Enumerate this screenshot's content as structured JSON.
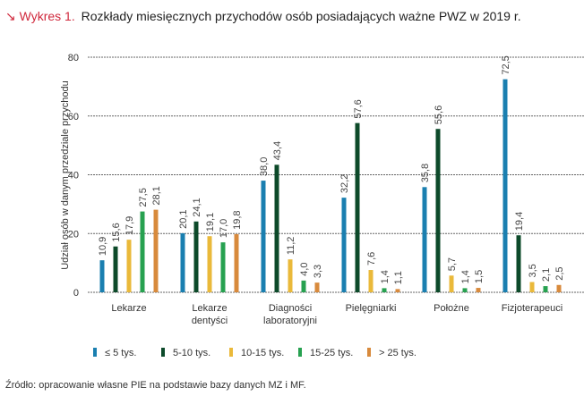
{
  "header": {
    "marker": "↘ Wykres 1.",
    "title": "Rozkłady miesięcznych przychodów osób posiadających ważne PWZ w 2019 r.",
    "marker_color": "#d0283c"
  },
  "source": "Źródło: opracowanie własne PIE na podstawie bazy danych MZ i MF.",
  "chart_data": {
    "type": "bar",
    "title": "Rozkłady miesięcznych przychodów osób posiadających ważne PWZ w 2019 r.",
    "ylabel": "Udział osób w danym przedziale przychodu",
    "ylim": [
      0,
      80
    ],
    "yticks": [
      0,
      20,
      40,
      60,
      80
    ],
    "grid": true,
    "legend": "bottom",
    "categories": [
      [
        "Lekarze"
      ],
      [
        "Lekarze",
        "dentyści"
      ],
      [
        "Diagności",
        "laboratoryjni"
      ],
      [
        "Pielęgniarki"
      ],
      [
        "Położne"
      ],
      [
        "Fizjoterapeuci"
      ]
    ],
    "series": [
      {
        "name": "≤ 5 tys.",
        "color": "#1a7fb0",
        "values": [
          10.9,
          20.1,
          38.0,
          32.2,
          35.8,
          72.5
        ],
        "labels": [
          "10,9",
          "20,1",
          "38,0",
          "32,2",
          "35,8",
          "72,5"
        ]
      },
      {
        "name": "5-10 tys.",
        "color": "#0d4a2a",
        "values": [
          15.6,
          24.1,
          43.4,
          57.6,
          55.6,
          19.4
        ],
        "labels": [
          "15,6",
          "24,1",
          "43,4",
          "57,6",
          "55,6",
          "19,4"
        ]
      },
      {
        "name": "10-15 tys.",
        "color": "#eab93a",
        "values": [
          17.9,
          19.1,
          11.2,
          7.6,
          5.7,
          3.5
        ],
        "labels": [
          "17,9",
          "19,1",
          "11,2",
          "7,6",
          "5,7",
          "3,5"
        ]
      },
      {
        "name": "15-25 tys.",
        "color": "#27a150",
        "values": [
          27.5,
          17.0,
          4.0,
          1.4,
          1.4,
          2.1
        ],
        "labels": [
          "27,5",
          "17,0",
          "4,0",
          "1,4",
          "1,4",
          "2,1"
        ]
      },
      {
        "name": "> 25 tys.",
        "color": "#d88a3c",
        "values": [
          28.1,
          19.8,
          3.3,
          1.1,
          1.5,
          2.5
        ],
        "labels": [
          "28,1",
          "19,8",
          "3,3",
          "1,1",
          "1,5",
          "2,5"
        ]
      }
    ]
  }
}
